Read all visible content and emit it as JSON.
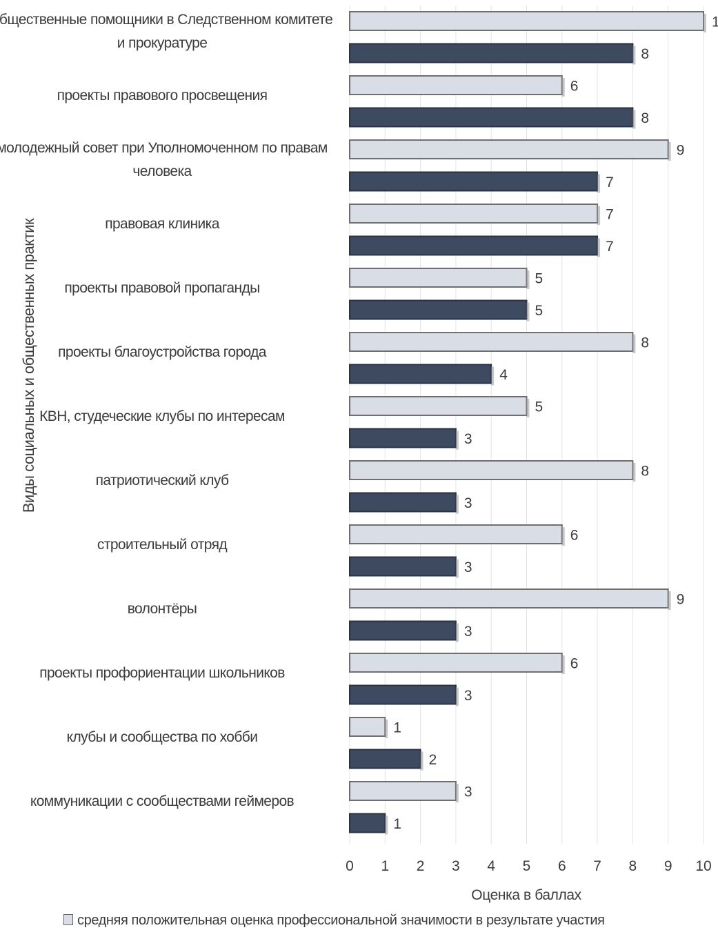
{
  "chart_data": {
    "type": "bar",
    "orientation": "horizontal",
    "categories": [
      "общественные помощники в  Следственном комитете и прокуратуре",
      "проекты правового просвещения",
      "молодежный совет при Уполномоченном по правам человека",
      "правовая клиника",
      "проекты правовой пропаганды",
      "проекты благоустройства города",
      "КВН, студеческие клубы по интересам",
      "патриотический клуб",
      "строительный отряд",
      "волонтёры",
      "проекты профориентации школьников",
      "клубы и сообщества по хобби",
      "коммуникации с сообществами геймеров"
    ],
    "series": [
      {
        "name": "средняя положительная оценка  профессиональной значимости в результате участия",
        "color": "#d9dee6",
        "values": [
          10,
          6,
          9,
          7,
          5,
          8,
          5,
          8,
          6,
          9,
          6,
          1,
          3
        ]
      },
      {
        "color": "#3d4a60",
        "values": [
          8,
          8,
          7,
          7,
          5,
          4,
          3,
          3,
          3,
          3,
          3,
          2,
          1
        ]
      }
    ],
    "xlabel": "Оценка в баллах",
    "ylabel": "Виды социальных и общественных практик",
    "xlim": [
      0,
      10
    ],
    "xticks": [
      "0",
      "1",
      "2",
      "3",
      "4",
      "5",
      "6",
      "7",
      "8",
      "9",
      "10"
    ],
    "grid": "vertical",
    "legend_position": "bottom"
  }
}
